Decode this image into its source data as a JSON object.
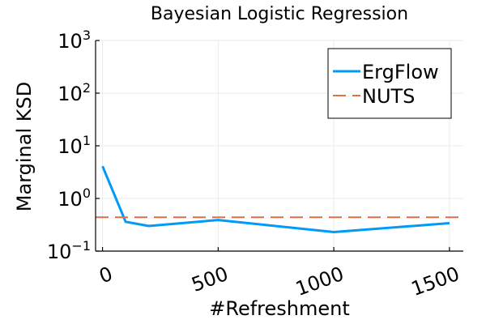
{
  "chart_data": {
    "type": "line",
    "title": "Bayesian Logistic Regression",
    "xlabel": "#Refreshment",
    "ylabel": "Marginal KSD",
    "xlim": [
      -30,
      1560
    ],
    "ylim": [
      0.1,
      1000
    ],
    "yscale": "log",
    "xticks": [
      0,
      500,
      1000,
      1500
    ],
    "xtick_labels": [
      "0",
      "500",
      "1000",
      "1500"
    ],
    "yticks": [
      0.1,
      1,
      10,
      100,
      1000
    ],
    "ytick_labels": [
      {
        "base": "10",
        "exp": "−1"
      },
      {
        "base": "10",
        "exp": "0"
      },
      {
        "base": "10",
        "exp": "1"
      },
      {
        "base": "10",
        "exp": "2"
      },
      {
        "base": "10",
        "exp": "3"
      }
    ],
    "grid": true,
    "legend_position": "top-right",
    "series": [
      {
        "name": "ErgFlow",
        "color": "#009af9",
        "style": "solid",
        "x": [
          0,
          100,
          200,
          500,
          1000,
          1500
        ],
        "y": [
          4.1,
          0.36,
          0.3,
          0.39,
          0.23,
          0.34
        ]
      },
      {
        "name": "NUTS",
        "color": "#e26f46",
        "style": "dashed",
        "x": [
          -30,
          1560
        ],
        "y": [
          0.44,
          0.44
        ]
      }
    ]
  }
}
